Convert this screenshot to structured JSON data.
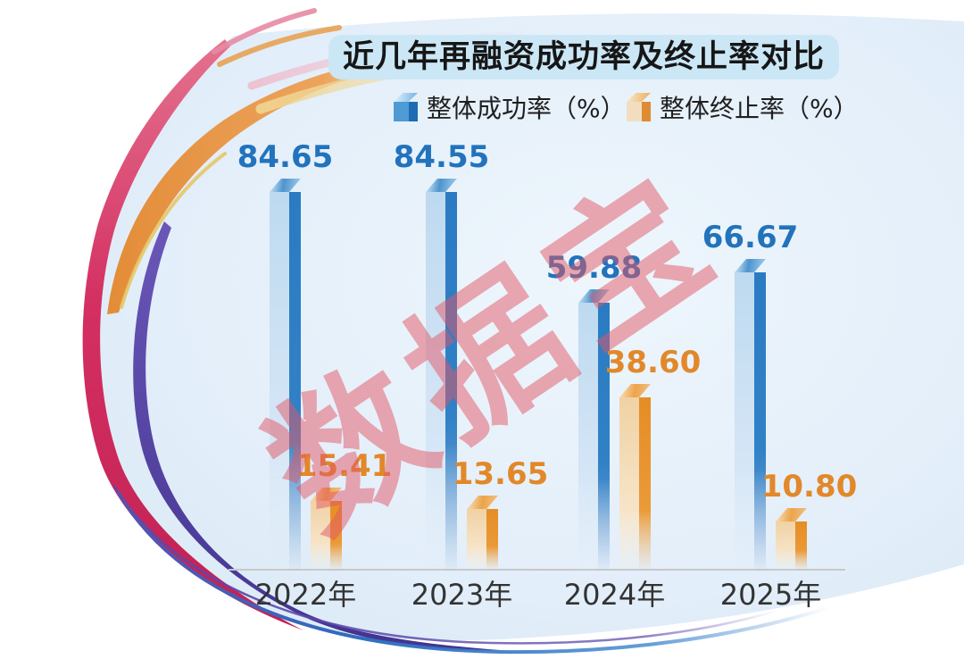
{
  "title": "近几年再融资成功率及终止率对比",
  "watermark": "数据宝",
  "colors": {
    "success_bar": "#2e80c5",
    "terminate_bar": "#e8912c",
    "success_value_label": "#2273bb",
    "terminate_value_label": "#e2882a",
    "title_banner_bg": "#cbe7f6",
    "title_text": "#161616",
    "watermark": "rgba(226,85,100,0.5)",
    "axis_line": "#c8c8c8",
    "category_text": "#333333",
    "chart_background": "#e3eef8"
  },
  "legend": {
    "items": [
      {
        "label": "整体成功率（%）",
        "series": "success"
      },
      {
        "label": "整体终止率（%）",
        "series": "terminate"
      }
    ]
  },
  "chart_data": {
    "type": "bar",
    "title": "近几年再融资成功率及终止率对比",
    "categories": [
      "2022年",
      "2023年",
      "2024年",
      "2025年"
    ],
    "series": [
      {
        "name": "整体成功率（%）",
        "key": "success",
        "values": [
          84.65,
          84.55,
          59.88,
          66.67
        ],
        "labels": [
          "84.65",
          "84.55",
          "59.88",
          "66.67"
        ]
      },
      {
        "name": "整体终止率（%）",
        "key": "terminate",
        "values": [
          15.41,
          13.65,
          38.6,
          10.8
        ],
        "labels": [
          "15.41",
          "13.65",
          "38.60",
          "10.80"
        ]
      }
    ],
    "xlabel": "",
    "ylabel": "",
    "ylim": [
      0,
      100
    ],
    "grid": false,
    "legend_position": "top",
    "bar_style": "3d-column"
  }
}
